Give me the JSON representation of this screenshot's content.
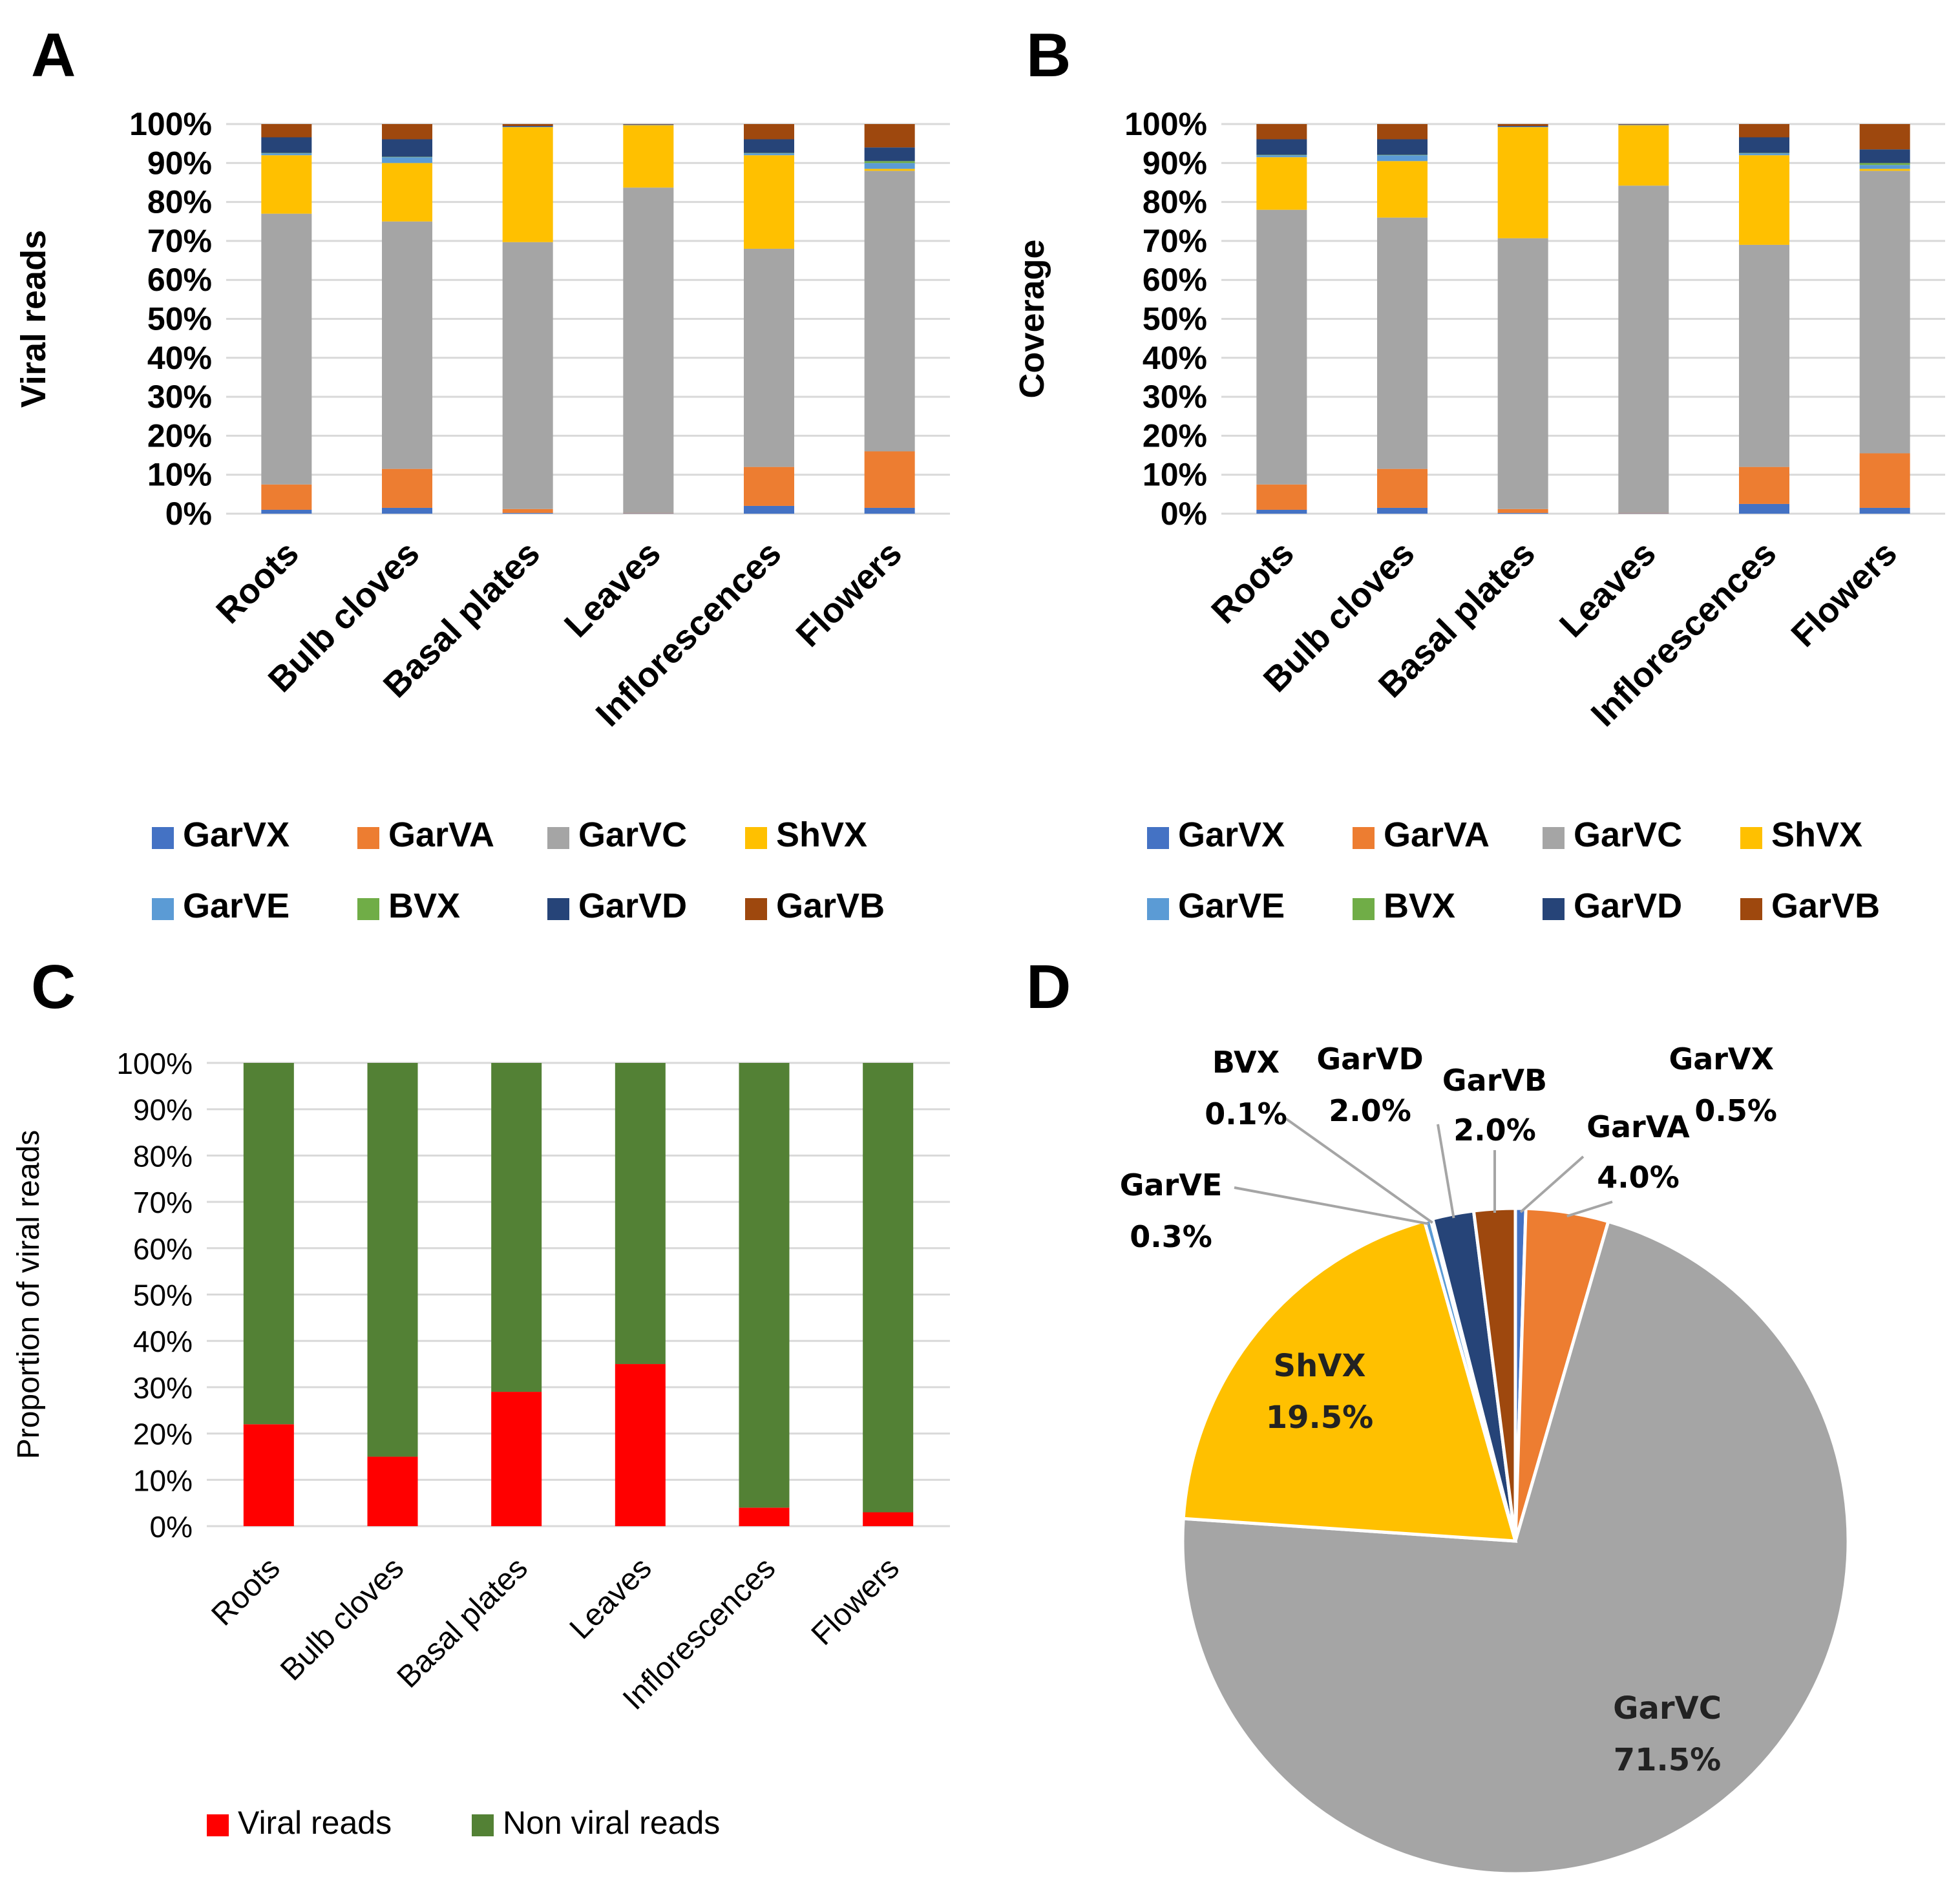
{
  "panels": {
    "a": "A",
    "b": "B",
    "c": "C",
    "d": "D"
  },
  "colors": {
    "GarVX": "#4472c4",
    "GarVA": "#ed7d31",
    "GarVC": "#a5a5a5",
    "ShVX": "#ffc000",
    "GarVE": "#5b9bd5",
    "BVX": "#70ad47",
    "GarVD": "#264478",
    "GarVB": "#9e480e",
    "viral": "#ff0000",
    "nonviral": "#538135"
  },
  "chart_data": [
    {
      "id": "A",
      "type": "bar",
      "stacked": true,
      "ylabel": "Viral reads",
      "xlabel": "",
      "ylim": [
        0,
        100
      ],
      "yticks": [
        "0%",
        "10%",
        "20%",
        "30%",
        "40%",
        "50%",
        "60%",
        "70%",
        "80%",
        "90%",
        "100%"
      ],
      "categories": [
        "Roots",
        "Bulb cloves",
        "Basal plates",
        "Leaves",
        "Inflorescences",
        "Flowers"
      ],
      "legend": [
        "GarVX",
        "GarVA",
        "GarVC",
        "ShVX",
        "GarVE",
        "BVX",
        "GarVD",
        "GarVB"
      ],
      "series": [
        {
          "name": "GarVX",
          "values": [
            1.0,
            1.5,
            0.2,
            0.1,
            2.0,
            1.5
          ]
        },
        {
          "name": "GarVA",
          "values": [
            6.5,
            10.0,
            1.0,
            0.1,
            10.0,
            14.5
          ]
        },
        {
          "name": "GarVC",
          "values": [
            69.5,
            63.5,
            68.5,
            83.5,
            56.0,
            72.0
          ]
        },
        {
          "name": "ShVX",
          "values": [
            15.0,
            15.0,
            29.5,
            16.0,
            24.0,
            0.5
          ]
        },
        {
          "name": "GarVE",
          "values": [
            0.5,
            1.5,
            0.1,
            0.1,
            0.5,
            1.5
          ]
        },
        {
          "name": "BVX",
          "values": [
            0.1,
            0.1,
            0.0,
            0.0,
            0.1,
            0.5
          ]
        },
        {
          "name": "GarVD",
          "values": [
            4.0,
            4.5,
            0.2,
            0.1,
            3.5,
            3.5
          ]
        },
        {
          "name": "GarVB",
          "values": [
            3.4,
            3.9,
            0.5,
            0.1,
            3.9,
            6.0
          ]
        }
      ]
    },
    {
      "id": "B",
      "type": "bar",
      "stacked": true,
      "ylabel": "Coverage",
      "xlabel": "",
      "ylim": [
        0,
        100
      ],
      "yticks": [
        "0%",
        "10%",
        "20%",
        "30%",
        "40%",
        "50%",
        "60%",
        "70%",
        "80%",
        "90%",
        "100%"
      ],
      "categories": [
        "Roots",
        "Bulb cloves",
        "Basal plates",
        "Leaves",
        "Inflorescences",
        "Flowers"
      ],
      "legend": [
        "GarVX",
        "GarVA",
        "GarVC",
        "ShVX",
        "GarVE",
        "BVX",
        "GarVD",
        "GarVB"
      ],
      "series": [
        {
          "name": "GarVX",
          "values": [
            1.0,
            1.5,
            0.2,
            0.1,
            2.5,
            1.5
          ]
        },
        {
          "name": "GarVA",
          "values": [
            6.5,
            10.0,
            1.0,
            0.1,
            9.5,
            14.0
          ]
        },
        {
          "name": "GarVC",
          "values": [
            70.5,
            64.5,
            69.5,
            84.0,
            57.0,
            72.5
          ]
        },
        {
          "name": "ShVX",
          "values": [
            13.5,
            14.5,
            28.5,
            15.5,
            23.0,
            0.5
          ]
        },
        {
          "name": "GarVE",
          "values": [
            0.5,
            1.5,
            0.1,
            0.1,
            0.5,
            1.0
          ]
        },
        {
          "name": "BVX",
          "values": [
            0.1,
            0.1,
            0.0,
            0.0,
            0.1,
            0.5
          ]
        },
        {
          "name": "GarVD",
          "values": [
            4.0,
            4.0,
            0.2,
            0.1,
            4.0,
            3.5
          ]
        },
        {
          "name": "GarVB",
          "values": [
            3.9,
            3.9,
            0.5,
            0.1,
            3.4,
            6.5
          ]
        }
      ]
    },
    {
      "id": "C",
      "type": "bar",
      "stacked": true,
      "ylabel": "Proportion of viral reads",
      "xlabel": "",
      "ylim": [
        0,
        100
      ],
      "yticks": [
        "0%",
        "10%",
        "20%",
        "30%",
        "40%",
        "50%",
        "60%",
        "70%",
        "80%",
        "90%",
        "100%"
      ],
      "categories": [
        "Roots",
        "Bulb cloves",
        "Basal plates",
        "Leaves",
        "Inflorescences",
        "Flowers"
      ],
      "legend": [
        "Viral reads",
        "Non viral reads"
      ],
      "series": [
        {
          "name": "Viral reads",
          "values": [
            22,
            15,
            29,
            35,
            4,
            3
          ]
        },
        {
          "name": "Non viral reads",
          "values": [
            78,
            85,
            71,
            65,
            96,
            97
          ]
        }
      ]
    },
    {
      "id": "D",
      "type": "pie",
      "slices": [
        {
          "name": "GarVX",
          "value": 0.5,
          "label": "0.5%"
        },
        {
          "name": "GarVA",
          "value": 4.0,
          "label": "4.0%"
        },
        {
          "name": "GarVC",
          "value": 71.5,
          "label": "71.5%"
        },
        {
          "name": "ShVX",
          "value": 19.5,
          "label": "19.5%"
        },
        {
          "name": "GarVE",
          "value": 0.3,
          "label": "0.3%"
        },
        {
          "name": "BVX",
          "value": 0.1,
          "label": "0.1%"
        },
        {
          "name": "GarVD",
          "value": 2.0,
          "label": "2.0%"
        },
        {
          "name": "GarVB",
          "value": 2.0,
          "label": "2.0%"
        }
      ]
    }
  ]
}
